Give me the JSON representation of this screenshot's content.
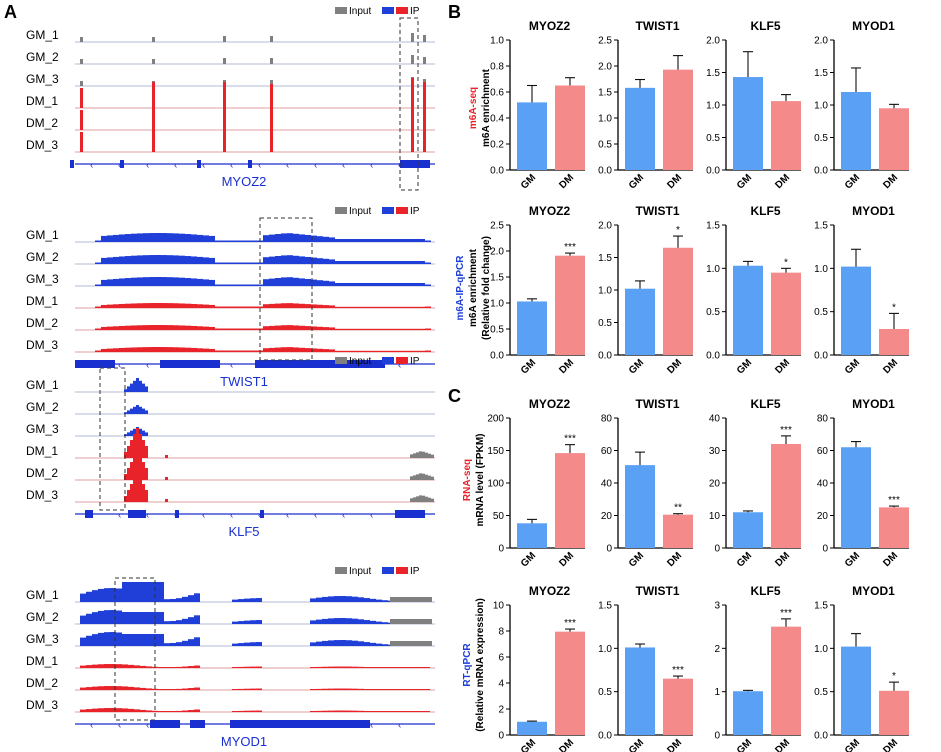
{
  "figure": {
    "panel_labels": {
      "A": "A",
      "B": "B",
      "C": "C"
    },
    "x_categories": [
      "GM",
      "DM"
    ],
    "colors": {
      "gm_bar": "#5aa0f5",
      "dm_bar": "#f48a8a",
      "ip_blue": "#1f3fd8",
      "ip_red": "#e8232a",
      "input_grey": "#808080",
      "gene_blue": "#1a2fd0",
      "seq_red": "#e8232a",
      "seq_blue": "#1f3fd8"
    }
  },
  "tracks": {
    "legend_input": "Input",
    "legend_ip": "IP",
    "sample_labels": [
      "GM_1",
      "GM_2",
      "GM_3",
      "DM_1",
      "DM_2",
      "DM_3"
    ],
    "genes": [
      "MYOZ2",
      "TWIST1",
      "KLF5",
      "MYOD1"
    ]
  },
  "row_labels": {
    "row1_method": "m6A-seq",
    "row1_measure": "m6A enrichment",
    "row2_method": "m6A-IP-qPCR",
    "row2_measure": "m6A enrichment",
    "row2_unit": "(Relative fold change)",
    "row3_method": "RNA-seq",
    "row3_measure": "mRNA level (FPKM)",
    "row4_method": "RT-qPCR",
    "row4_measure": "(Relative mRNA expression)"
  },
  "chart_data": [
    {
      "type": "bar",
      "row": "m6A-seq",
      "title": "MYOZ2",
      "categories": [
        "GM",
        "DM"
      ],
      "values": [
        0.52,
        0.65
      ],
      "errors": [
        0.13,
        0.06
      ],
      "ylim": [
        0,
        1.0
      ],
      "yticks": [
        "0.0",
        "0.2",
        "0.4",
        "0.6",
        "0.8",
        "1.0"
      ],
      "significance": [
        "",
        ""
      ],
      "ylabel": "m6A enrichment"
    },
    {
      "type": "bar",
      "row": "m6A-seq",
      "title": "TWIST1",
      "categories": [
        "GM",
        "DM"
      ],
      "values": [
        1.58,
        1.93
      ],
      "errors": [
        0.16,
        0.27
      ],
      "ylim": [
        0,
        2.5
      ],
      "yticks": [
        "0.0",
        "0.5",
        "1.0",
        "1.5",
        "2.0",
        "2.5"
      ],
      "significance": [
        "",
        ""
      ]
    },
    {
      "type": "bar",
      "row": "m6A-seq",
      "title": "KLF5",
      "categories": [
        "GM",
        "DM"
      ],
      "values": [
        1.43,
        1.06
      ],
      "errors": [
        0.39,
        0.1
      ],
      "ylim": [
        0,
        2.0
      ],
      "yticks": [
        "0.0",
        "0.5",
        "1.0",
        "1.5",
        "2.0"
      ],
      "significance": [
        "",
        ""
      ]
    },
    {
      "type": "bar",
      "row": "m6A-seq",
      "title": "MYOD1",
      "categories": [
        "GM",
        "DM"
      ],
      "values": [
        1.2,
        0.95
      ],
      "errors": [
        0.37,
        0.06
      ],
      "ylim": [
        0,
        2.0
      ],
      "yticks": [
        "0.0",
        "0.5",
        "1.0",
        "1.5",
        "2.0"
      ],
      "significance": [
        "",
        ""
      ]
    },
    {
      "type": "bar",
      "row": "m6A-IP-qPCR",
      "title": "MYOZ2",
      "categories": [
        "GM",
        "DM"
      ],
      "values": [
        1.03,
        1.91
      ],
      "errors": [
        0.05,
        0.05
      ],
      "ylim": [
        0,
        2.5
      ],
      "yticks": [
        "0.0",
        "0.5",
        "1.0",
        "1.5",
        "2.0",
        "2.5"
      ],
      "significance": [
        "",
        "***"
      ],
      "ylabel": "m6A enrichment (Relative fold change)"
    },
    {
      "type": "bar",
      "row": "m6A-IP-qPCR",
      "title": "TWIST1",
      "categories": [
        "GM",
        "DM"
      ],
      "values": [
        1.02,
        1.65
      ],
      "errors": [
        0.12,
        0.18
      ],
      "ylim": [
        0,
        2.0
      ],
      "yticks": [
        "0.0",
        "0.5",
        "1.0",
        "1.5",
        "2.0"
      ],
      "significance": [
        "",
        "*"
      ]
    },
    {
      "type": "bar",
      "row": "m6A-IP-qPCR",
      "title": "KLF5",
      "categories": [
        "GM",
        "DM"
      ],
      "values": [
        1.03,
        0.95
      ],
      "errors": [
        0.05,
        0.05
      ],
      "ylim": [
        0,
        1.5
      ],
      "yticks": [
        "0.0",
        "0.5",
        "1.0",
        "1.5"
      ],
      "significance": [
        "",
        "*"
      ]
    },
    {
      "type": "bar",
      "row": "m6A-IP-qPCR",
      "title": "MYOD1",
      "categories": [
        "GM",
        "DM"
      ],
      "values": [
        1.02,
        0.3
      ],
      "errors": [
        0.2,
        0.18
      ],
      "ylim": [
        0,
        1.5
      ],
      "yticks": [
        "0.0",
        "0.5",
        "1.0",
        "1.5"
      ],
      "significance": [
        "",
        "*"
      ]
    },
    {
      "type": "bar",
      "row": "RNA-seq",
      "title": "MYOZ2",
      "categories": [
        "GM",
        "DM"
      ],
      "values": [
        38,
        146
      ],
      "errors": [
        6,
        13
      ],
      "ylim": [
        0,
        200
      ],
      "yticks": [
        "0",
        "50",
        "100",
        "150",
        "200"
      ],
      "significance": [
        "",
        "***"
      ],
      "ylabel": "mRNA level (FPKM)"
    },
    {
      "type": "bar",
      "row": "RNA-seq",
      "title": "TWIST1",
      "categories": [
        "GM",
        "DM"
      ],
      "values": [
        51,
        20.5
      ],
      "errors": [
        8,
        0.6
      ],
      "ylim": [
        0,
        80
      ],
      "yticks": [
        "0",
        "20",
        "40",
        "60",
        "80"
      ],
      "significance": [
        "",
        "**"
      ]
    },
    {
      "type": "bar",
      "row": "RNA-seq",
      "title": "KLF5",
      "categories": [
        "GM",
        "DM"
      ],
      "values": [
        11,
        32
      ],
      "errors": [
        0.4,
        2.5
      ],
      "ylim": [
        0,
        40
      ],
      "yticks": [
        "0",
        "10",
        "20",
        "30",
        "40"
      ],
      "significance": [
        "",
        "***"
      ]
    },
    {
      "type": "bar",
      "row": "RNA-seq",
      "title": "MYOD1",
      "categories": [
        "GM",
        "DM"
      ],
      "values": [
        62,
        25
      ],
      "errors": [
        3.5,
        0.8
      ],
      "ylim": [
        0,
        80
      ],
      "yticks": [
        "0",
        "20",
        "40",
        "60",
        "80"
      ],
      "significance": [
        "",
        "***"
      ]
    },
    {
      "type": "bar",
      "row": "RT-qPCR",
      "title": "MYOZ2",
      "categories": [
        "GM",
        "DM"
      ],
      "values": [
        1.02,
        7.95
      ],
      "errors": [
        0.05,
        0.2
      ],
      "ylim": [
        0,
        10
      ],
      "yticks": [
        "0",
        "2",
        "4",
        "6",
        "8",
        "10"
      ],
      "significance": [
        "",
        "***"
      ],
      "ylabel": "(Relative mRNA expression)"
    },
    {
      "type": "bar",
      "row": "RT-qPCR",
      "title": "TWIST1",
      "categories": [
        "GM",
        "DM"
      ],
      "values": [
        1.01,
        0.65
      ],
      "errors": [
        0.04,
        0.03
      ],
      "ylim": [
        0,
        1.5
      ],
      "yticks": [
        "0.0",
        "0.5",
        "1.0",
        "1.5"
      ],
      "significance": [
        "",
        "***"
      ]
    },
    {
      "type": "bar",
      "row": "RT-qPCR",
      "title": "KLF5",
      "categories": [
        "GM",
        "DM"
      ],
      "values": [
        1.01,
        2.5
      ],
      "errors": [
        0.02,
        0.18
      ],
      "ylim": [
        0,
        3
      ],
      "yticks": [
        "0",
        "1",
        "2",
        "3"
      ],
      "significance": [
        "",
        "***"
      ]
    },
    {
      "type": "bar",
      "row": "RT-qPCR",
      "title": "MYOD1",
      "categories": [
        "GM",
        "DM"
      ],
      "values": [
        1.02,
        0.51
      ],
      "errors": [
        0.15,
        0.1
      ],
      "ylim": [
        0,
        1.5
      ],
      "yticks": [
        "0.0",
        "0.5",
        "1.0",
        "1.5"
      ],
      "significance": [
        "",
        "*"
      ]
    }
  ]
}
